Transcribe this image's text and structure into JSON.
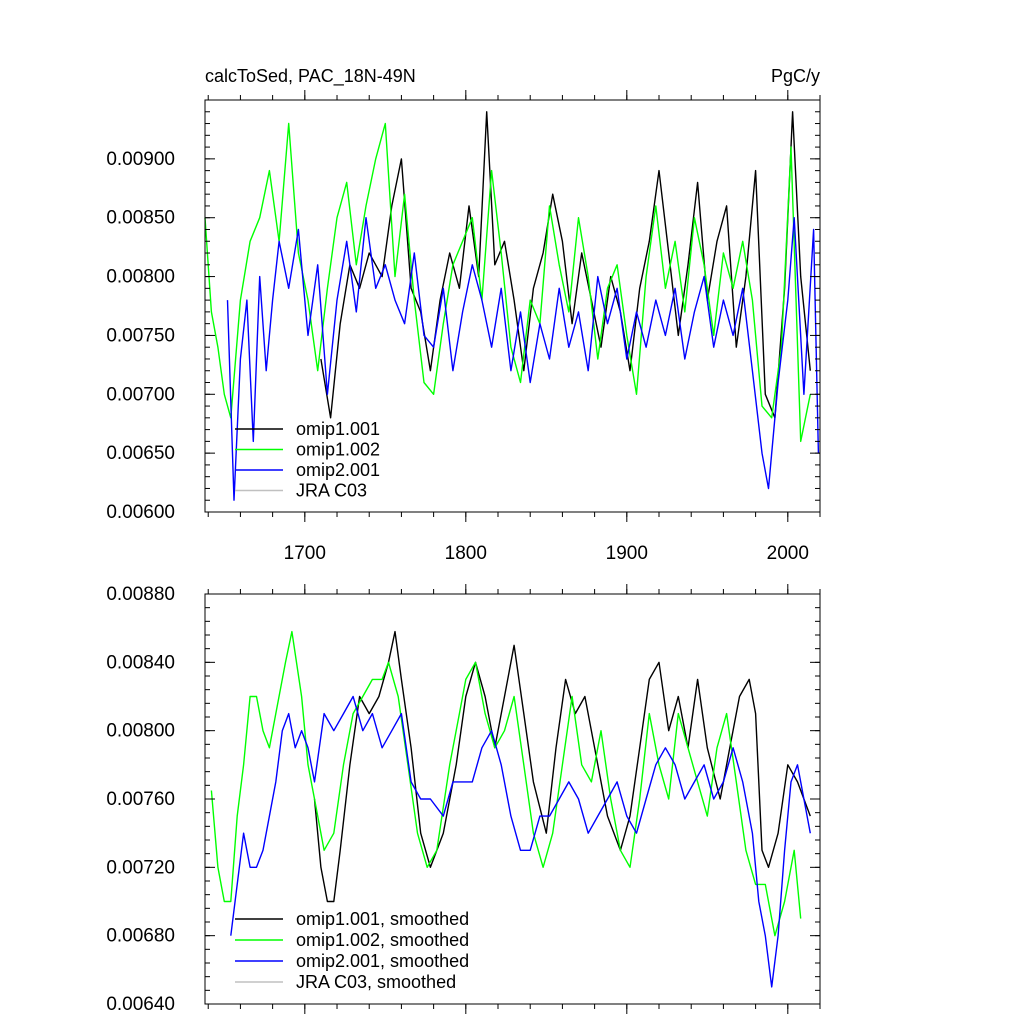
{
  "chart_data": [
    {
      "type": "line",
      "title_left": "calcToSed, PAC_18N-49N",
      "title_right": "PgC/y",
      "xlim": [
        1638,
        2020
      ],
      "ylim": [
        0.006,
        0.0095
      ],
      "xticks": [
        1700,
        1800,
        1900,
        2000
      ],
      "xtick_labels": [
        "1700",
        "1800",
        "1900",
        "2000"
      ],
      "yticks": [
        0.006,
        0.0065,
        0.007,
        0.0075,
        0.008,
        0.0085,
        0.009
      ],
      "ytick_labels": [
        "0.00600",
        "0.00650",
        "0.00700",
        "0.00750",
        "0.00800",
        "0.00850",
        "0.00900"
      ],
      "legend_position": "bottom-left",
      "series": [
        {
          "name": "omip1.001",
          "color": "#000000",
          "x": [
            1710,
            1716,
            1722,
            1728,
            1734,
            1740,
            1748,
            1754,
            1760,
            1766,
            1772,
            1778,
            1784,
            1790,
            1796,
            1802,
            1808,
            1813,
            1818,
            1824,
            1830,
            1836,
            1842,
            1848,
            1854,
            1860,
            1866,
            1872,
            1878,
            1884,
            1890,
            1896,
            1902,
            1908,
            1914,
            1920,
            1926,
            1932,
            1938,
            1944,
            1950,
            1956,
            1962,
            1968,
            1974,
            1980,
            1986,
            1992,
            1998,
            2003,
            2008,
            2014
          ],
          "y": [
            0.0073,
            0.0068,
            0.0076,
            0.0081,
            0.0079,
            0.0082,
            0.008,
            0.0086,
            0.009,
            0.0079,
            0.0077,
            0.0072,
            0.0078,
            0.0082,
            0.0079,
            0.0086,
            0.008,
            0.0094,
            0.0081,
            0.0083,
            0.0078,
            0.0072,
            0.0079,
            0.0082,
            0.0087,
            0.0083,
            0.0076,
            0.0082,
            0.0078,
            0.0074,
            0.008,
            0.0077,
            0.0072,
            0.0079,
            0.0083,
            0.0089,
            0.0082,
            0.0075,
            0.0081,
            0.0088,
            0.0078,
            0.0083,
            0.0086,
            0.0074,
            0.008,
            0.0089,
            0.007,
            0.0068,
            0.0079,
            0.0094,
            0.008,
            0.0072
          ]
        },
        {
          "name": "omip1.002",
          "color": "#00ff00",
          "x": [
            1638,
            1642,
            1646,
            1650,
            1654,
            1660,
            1666,
            1672,
            1678,
            1684,
            1690,
            1696,
            1702,
            1708,
            1714,
            1720,
            1726,
            1732,
            1738,
            1744,
            1750,
            1756,
            1762,
            1768,
            1774,
            1780,
            1786,
            1792,
            1798,
            1804,
            1810,
            1816,
            1822,
            1828,
            1834,
            1840,
            1846,
            1852,
            1858,
            1864,
            1870,
            1876,
            1882,
            1888,
            1894,
            1900,
            1906,
            1912,
            1918,
            1924,
            1930,
            1936,
            1942,
            1948,
            1954,
            1960,
            1966,
            1972,
            1978,
            1984,
            1990,
            1996,
            2002,
            2008,
            2014
          ],
          "y": [
            0.0085,
            0.0077,
            0.0074,
            0.007,
            0.0068,
            0.0078,
            0.0083,
            0.0085,
            0.0089,
            0.0083,
            0.0093,
            0.0082,
            0.0078,
            0.0072,
            0.0079,
            0.0085,
            0.0088,
            0.0081,
            0.0086,
            0.009,
            0.0093,
            0.008,
            0.0087,
            0.0078,
            0.0071,
            0.007,
            0.0076,
            0.0081,
            0.0083,
            0.0085,
            0.0078,
            0.0089,
            0.0082,
            0.0074,
            0.0071,
            0.0078,
            0.0076,
            0.0086,
            0.0081,
            0.0077,
            0.0085,
            0.008,
            0.0073,
            0.0079,
            0.0081,
            0.0075,
            0.007,
            0.008,
            0.0086,
            0.0079,
            0.0083,
            0.0077,
            0.0085,
            0.0081,
            0.0075,
            0.0082,
            0.0079,
            0.0083,
            0.0078,
            0.0069,
            0.0068,
            0.0074,
            0.0091,
            0.0066,
            0.007
          ]
        },
        {
          "name": "omip2.001",
          "color": "#0000ff",
          "x": [
            1652,
            1656,
            1660,
            1664,
            1668,
            1672,
            1676,
            1680,
            1684,
            1690,
            1696,
            1702,
            1708,
            1714,
            1720,
            1726,
            1732,
            1738,
            1744,
            1750,
            1756,
            1762,
            1768,
            1774,
            1780,
            1786,
            1792,
            1798,
            1804,
            1810,
            1816,
            1822,
            1828,
            1834,
            1840,
            1846,
            1852,
            1858,
            1864,
            1870,
            1876,
            1882,
            1888,
            1894,
            1900,
            1906,
            1912,
            1918,
            1924,
            1930,
            1936,
            1942,
            1948,
            1954,
            1960,
            1966,
            1972,
            1978,
            1984,
            1988,
            1994,
            2000,
            2004,
            2010,
            2016,
            2019
          ],
          "y": [
            0.0078,
            0.0061,
            0.0073,
            0.0078,
            0.0066,
            0.008,
            0.0072,
            0.0078,
            0.0083,
            0.0079,
            0.0084,
            0.0075,
            0.0081,
            0.007,
            0.0078,
            0.0083,
            0.0077,
            0.0085,
            0.0079,
            0.0081,
            0.0078,
            0.0076,
            0.0082,
            0.0075,
            0.0074,
            0.0079,
            0.0072,
            0.0077,
            0.0081,
            0.0078,
            0.0074,
            0.0079,
            0.0072,
            0.0077,
            0.0071,
            0.0076,
            0.0073,
            0.0079,
            0.0074,
            0.0077,
            0.0072,
            0.008,
            0.0076,
            0.0079,
            0.0073,
            0.0077,
            0.0074,
            0.0078,
            0.0075,
            0.0079,
            0.0073,
            0.0077,
            0.008,
            0.0074,
            0.0078,
            0.0075,
            0.0079,
            0.0072,
            0.0065,
            0.0062,
            0.0071,
            0.0078,
            0.0085,
            0.007,
            0.0084,
            0.0065
          ]
        },
        {
          "name": "JRA C03",
          "color": "#c0c0c0",
          "x": [],
          "y": []
        }
      ]
    },
    {
      "type": "line",
      "xlim": [
        1638,
        2020
      ],
      "ylim": [
        0.0064,
        0.0088
      ],
      "xticks": [
        1700,
        1800,
        1900,
        2000
      ],
      "yticks": [
        0.0064,
        0.0068,
        0.0072,
        0.0076,
        0.008,
        0.0084,
        0.0088
      ],
      "ytick_labels": [
        "0.00640",
        "0.00680",
        "0.00720",
        "0.00760",
        "0.00800",
        "0.00840",
        "0.00880"
      ],
      "legend_position": "bottom-left",
      "series": [
        {
          "name": "omip1.001, smoothed",
          "color": "#000000",
          "x": [
            1706,
            1710,
            1714,
            1718,
            1722,
            1728,
            1734,
            1740,
            1746,
            1752,
            1756,
            1760,
            1766,
            1772,
            1778,
            1786,
            1794,
            1800,
            1806,
            1812,
            1818,
            1824,
            1830,
            1836,
            1842,
            1850,
            1856,
            1862,
            1868,
            1874,
            1880,
            1888,
            1896,
            1902,
            1908,
            1914,
            1920,
            1926,
            1932,
            1938,
            1944,
            1950,
            1958,
            1964,
            1970,
            1976,
            1980,
            1984,
            1988,
            1994,
            2000,
            2006,
            2010,
            2014
          ],
          "y": [
            0.0076,
            0.0072,
            0.007,
            0.007,
            0.0073,
            0.0078,
            0.0082,
            0.0081,
            0.0082,
            0.0084,
            0.00858,
            0.0083,
            0.0079,
            0.0074,
            0.0072,
            0.0074,
            0.0078,
            0.0082,
            0.0084,
            0.0082,
            0.0079,
            0.0082,
            0.0085,
            0.0081,
            0.0077,
            0.0074,
            0.0079,
            0.0083,
            0.0081,
            0.0082,
            0.0079,
            0.0075,
            0.0073,
            0.0075,
            0.0079,
            0.0083,
            0.0084,
            0.008,
            0.0082,
            0.0079,
            0.0083,
            0.0079,
            0.0076,
            0.0079,
            0.0082,
            0.0083,
            0.0081,
            0.0073,
            0.0072,
            0.0074,
            0.0078,
            0.0077,
            0.0076,
            0.0075
          ]
        },
        {
          "name": "omip1.002, smoothed",
          "color": "#00ff00",
          "x": [
            1642,
            1646,
            1650,
            1654,
            1658,
            1662,
            1666,
            1670,
            1674,
            1678,
            1682,
            1688,
            1692,
            1698,
            1702,
            1706,
            1712,
            1718,
            1724,
            1730,
            1736,
            1742,
            1748,
            1752,
            1758,
            1764,
            1770,
            1776,
            1782,
            1790,
            1796,
            1800,
            1806,
            1812,
            1818,
            1824,
            1830,
            1836,
            1842,
            1848,
            1854,
            1860,
            1866,
            1872,
            1878,
            1884,
            1890,
            1896,
            1902,
            1908,
            1914,
            1920,
            1926,
            1932,
            1938,
            1944,
            1950,
            1956,
            1962,
            1968,
            1974,
            1980,
            1986,
            1992,
            1998,
            2004,
            2008
          ],
          "y": [
            0.00765,
            0.0072,
            0.007,
            0.007,
            0.0075,
            0.0078,
            0.0082,
            0.0082,
            0.008,
            0.0079,
            0.0081,
            0.0084,
            0.00858,
            0.0082,
            0.0078,
            0.0076,
            0.0073,
            0.0074,
            0.0078,
            0.0081,
            0.0082,
            0.0083,
            0.0083,
            0.0084,
            0.0082,
            0.0078,
            0.0074,
            0.0072,
            0.0073,
            0.0078,
            0.0081,
            0.0083,
            0.0084,
            0.0081,
            0.0079,
            0.008,
            0.0082,
            0.0078,
            0.0074,
            0.0072,
            0.0074,
            0.0078,
            0.0082,
            0.0078,
            0.0077,
            0.008,
            0.0076,
            0.0073,
            0.0072,
            0.0076,
            0.0081,
            0.0078,
            0.0076,
            0.0081,
            0.0079,
            0.0077,
            0.0075,
            0.0079,
            0.0081,
            0.0077,
            0.0073,
            0.0071,
            0.0071,
            0.0068,
            0.007,
            0.0073,
            0.0069
          ]
        },
        {
          "name": "omip2.001, smoothed",
          "color": "#0000ff",
          "x": [
            1654,
            1658,
            1662,
            1666,
            1670,
            1674,
            1678,
            1682,
            1686,
            1690,
            1694,
            1698,
            1702,
            1706,
            1712,
            1718,
            1724,
            1730,
            1736,
            1742,
            1748,
            1754,
            1760,
            1766,
            1772,
            1778,
            1786,
            1792,
            1798,
            1804,
            1810,
            1816,
            1822,
            1828,
            1834,
            1840,
            1846,
            1852,
            1858,
            1864,
            1870,
            1876,
            1882,
            1888,
            1894,
            1900,
            1906,
            1912,
            1918,
            1924,
            1930,
            1936,
            1942,
            1948,
            1954,
            1960,
            1966,
            1972,
            1978,
            1982,
            1986,
            1990,
            1994,
            1998,
            2002,
            2006,
            2010,
            2014
          ],
          "y": [
            0.0068,
            0.0071,
            0.0074,
            0.0072,
            0.0072,
            0.0073,
            0.0075,
            0.0077,
            0.008,
            0.0081,
            0.0079,
            0.008,
            0.0079,
            0.0077,
            0.0081,
            0.008,
            0.0081,
            0.0082,
            0.008,
            0.0081,
            0.0079,
            0.008,
            0.0081,
            0.0077,
            0.0076,
            0.0076,
            0.0075,
            0.0077,
            0.0077,
            0.0077,
            0.0079,
            0.008,
            0.0078,
            0.0075,
            0.0073,
            0.0073,
            0.0075,
            0.0075,
            0.0076,
            0.0077,
            0.0076,
            0.0074,
            0.0075,
            0.0076,
            0.0077,
            0.0075,
            0.0074,
            0.0076,
            0.0078,
            0.0079,
            0.0078,
            0.0076,
            0.0077,
            0.0078,
            0.0076,
            0.0077,
            0.0079,
            0.0077,
            0.0074,
            0.007,
            0.0068,
            0.0065,
            0.0068,
            0.0073,
            0.0077,
            0.0078,
            0.0076,
            0.0074
          ]
        },
        {
          "name": "JRA C03, smoothed",
          "color": "#c0c0c0",
          "x": [],
          "y": []
        }
      ]
    }
  ]
}
